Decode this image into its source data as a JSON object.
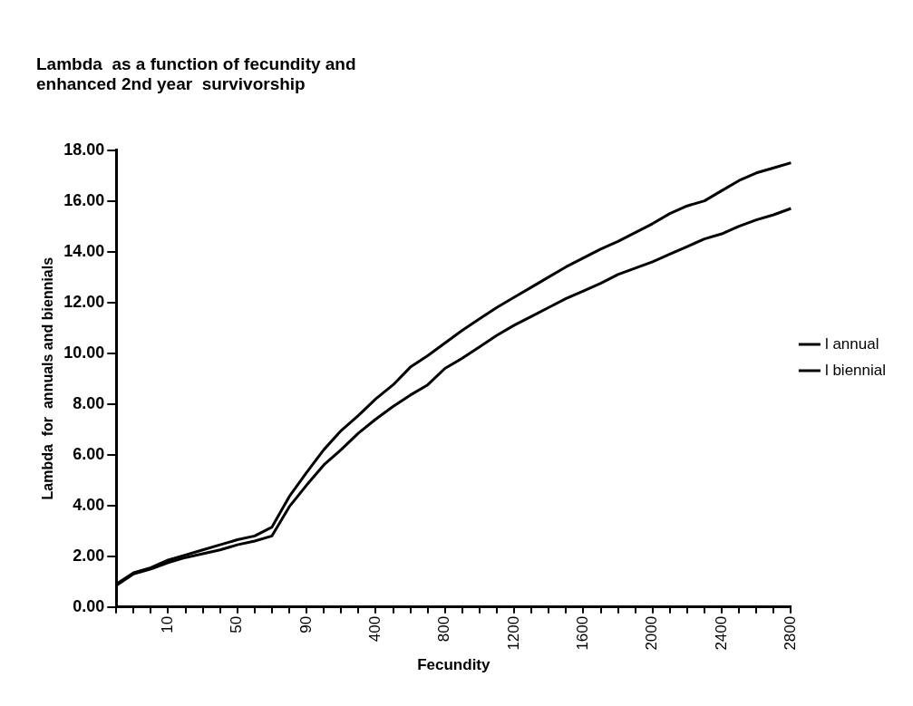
{
  "chart_data": {
    "type": "line",
    "title": "Lambda  as a function of fecundity and enhanced 2nd year  survivorship",
    "xlabel": "Fecundity",
    "ylabel": "Lambda  for  annuals and biennials",
    "categories": [
      null,
      null,
      null,
      "10",
      null,
      null,
      null,
      "50",
      null,
      null,
      null,
      "90",
      null,
      null,
      null,
      "400",
      null,
      null,
      null,
      "800",
      null,
      null,
      null,
      "1200",
      null,
      null,
      null,
      "1600",
      null,
      null,
      null,
      "2000",
      null,
      null,
      null,
      "2400",
      null,
      null,
      null,
      "2800"
    ],
    "series": [
      {
        "name": "l annual",
        "color": "#000000",
        "values": [
          0.85,
          1.3,
          1.5,
          1.75,
          1.95,
          2.1,
          2.25,
          2.45,
          2.6,
          2.8,
          3.95,
          4.8,
          5.6,
          6.2,
          6.85,
          7.4,
          7.9,
          8.35,
          8.75,
          9.4,
          9.8,
          10.25,
          10.7,
          11.1,
          11.45,
          11.8,
          12.15,
          12.45,
          12.75,
          13.1,
          13.35,
          13.6,
          13.9,
          14.2,
          14.5,
          14.7,
          15.0,
          15.25,
          15.45,
          15.7
        ]
      },
      {
        "name": "l biennial",
        "color": "#000000",
        "values": [
          0.9,
          1.35,
          1.55,
          1.85,
          2.05,
          2.25,
          2.45,
          2.65,
          2.8,
          3.15,
          4.35,
          5.3,
          6.2,
          6.95,
          7.55,
          8.2,
          8.75,
          9.45,
          9.9,
          10.4,
          10.9,
          11.35,
          11.8,
          12.2,
          12.6,
          13.0,
          13.4,
          13.75,
          14.1,
          14.4,
          14.75,
          15.1,
          15.5,
          15.8,
          16.0,
          16.4,
          16.8,
          17.1,
          17.3,
          17.5
        ]
      }
    ],
    "ylim": [
      0,
      18
    ],
    "yticks": [
      {
        "value": 0,
        "label": "0.00"
      },
      {
        "value": 2,
        "label": "2.00"
      },
      {
        "value": 4,
        "label": "4.00"
      },
      {
        "value": 6,
        "label": "6.00"
      },
      {
        "value": 8,
        "label": "8.00"
      },
      {
        "value": 10,
        "label": "10.00"
      },
      {
        "value": 12,
        "label": "12.00"
      },
      {
        "value": 14,
        "label": "14.00"
      },
      {
        "value": 16,
        "label": "16.00"
      },
      {
        "value": 18,
        "label": "18.00"
      }
    ],
    "legend": "right",
    "marker": "none",
    "line_style": "solid"
  }
}
